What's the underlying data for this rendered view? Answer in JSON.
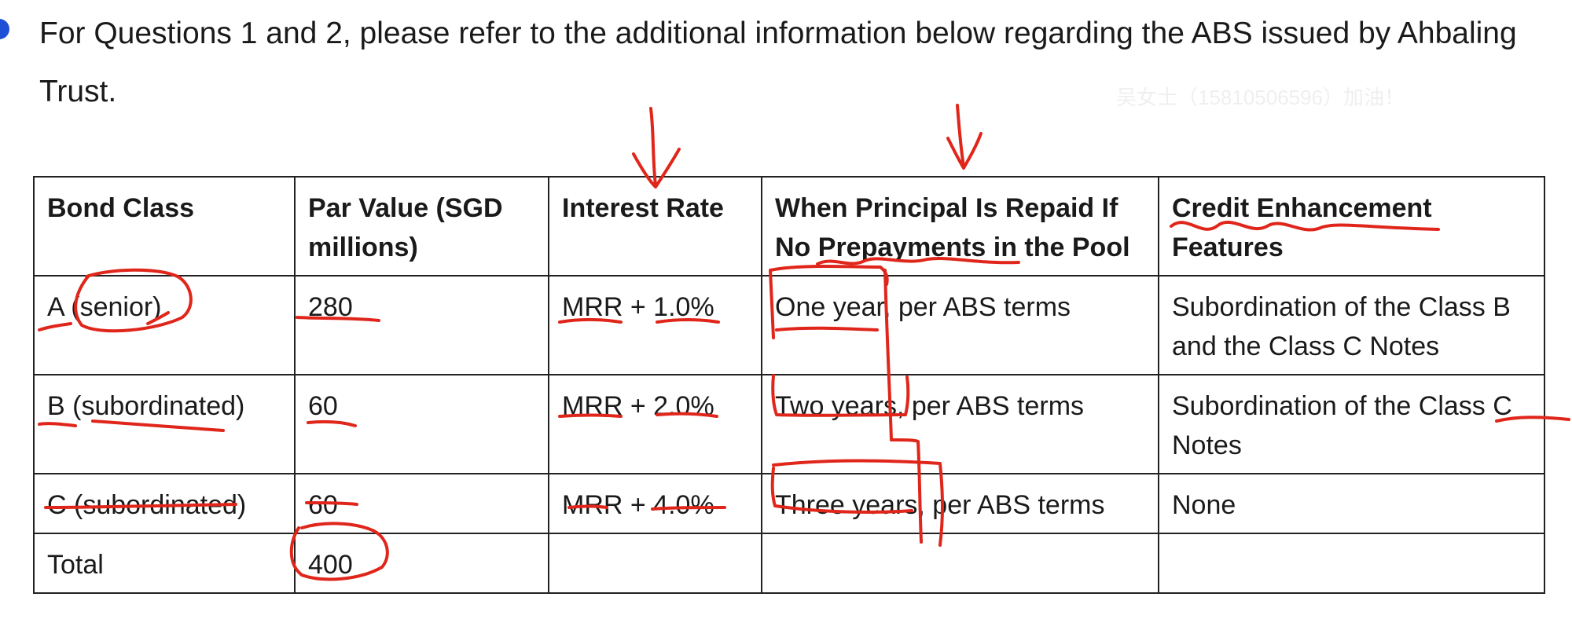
{
  "intro_text": "For Questions 1 and 2, please refer to the additional information below regarding the ABS issued by Ahbaling Trust.",
  "watermark": "吴女士（15810506596）加油！",
  "table": {
    "headers": [
      "Bond Class",
      "Par Value (SGD millions)",
      "Interest Rate",
      "When Principal Is Repaid If No Prepayments in the Pool",
      "Credit Enhancement Features"
    ],
    "rows": [
      [
        "A (senior)",
        "280",
        "MRR + 1.0%",
        "One year, per ABS terms",
        "Subordination of the Class B and the Class C Notes"
      ],
      [
        "B (subordinated)",
        "60",
        "MRR + 2.0%",
        "Two years, per ABS terms",
        "Subordination of the Class C Notes"
      ],
      [
        "C (subordinated)",
        "60",
        "MRR + 4.0%",
        "Three years, per ABS terms",
        "None"
      ],
      [
        "Total",
        "400",
        "",
        "",
        ""
      ]
    ]
  },
  "colors": {
    "annotation": "#e0261b",
    "bullet": "#1f4fd6"
  }
}
